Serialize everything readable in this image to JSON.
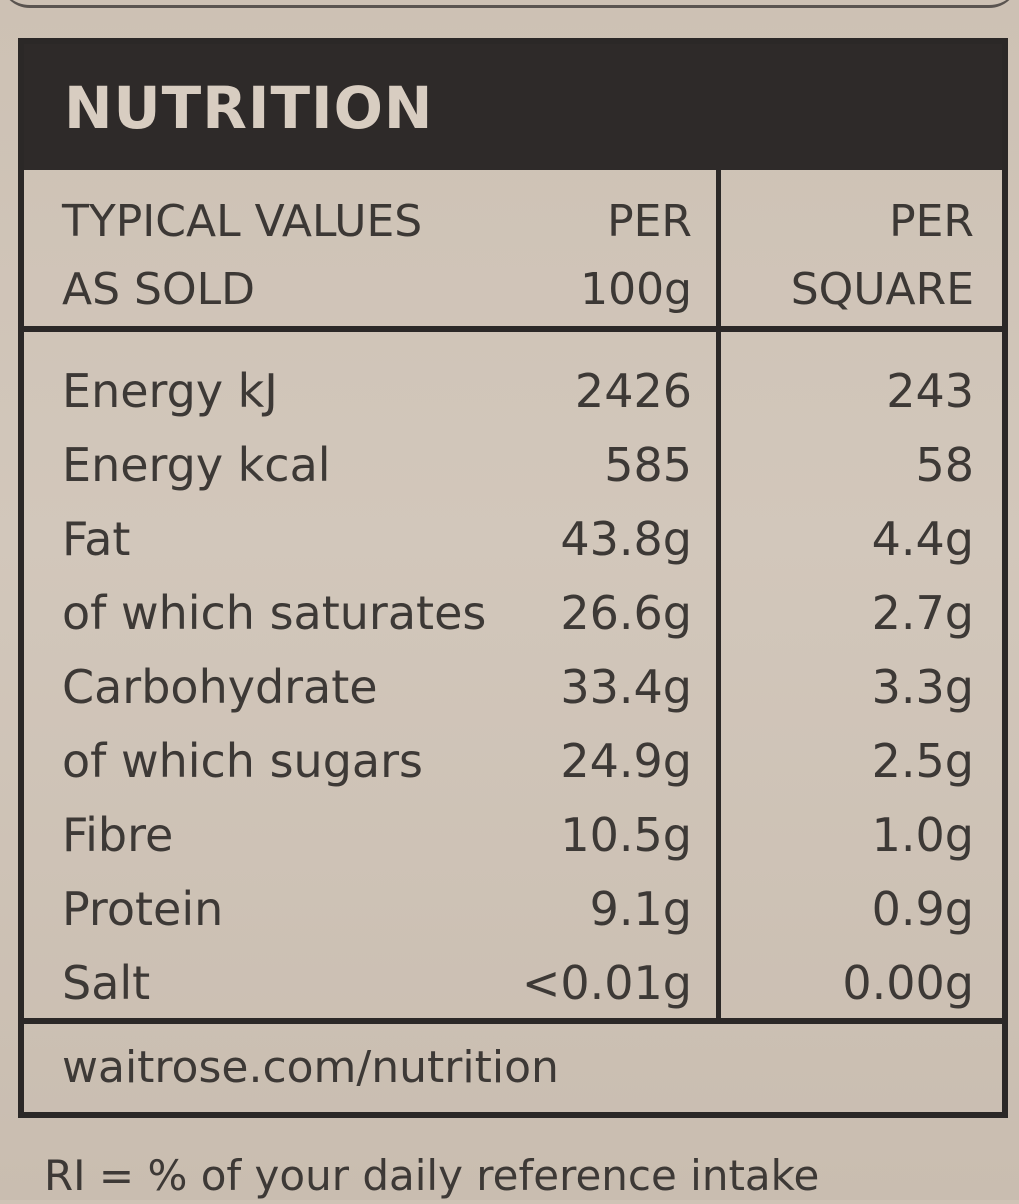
{
  "label": {
    "title": "NUTRITION",
    "column_headers": {
      "label_line1": "TYPICAL VALUES",
      "label_line2": "AS SOLD",
      "per100_line1": "PER",
      "per100_line2": "100g",
      "square_line1": "PER",
      "square_line2": "SQUARE"
    },
    "rows": [
      {
        "name": "Energy kJ",
        "per100": "2426",
        "square": "243"
      },
      {
        "name": "Energy kcal",
        "per100": "585",
        "square": "58"
      },
      {
        "name": "Fat",
        "per100": "43.8g",
        "square": "4.4g"
      },
      {
        "name": "of which saturates",
        "per100": "26.6g",
        "square": "2.7g"
      },
      {
        "name": "Carbohydrate",
        "per100": "33.4g",
        "square": "3.3g"
      },
      {
        "name": "of which sugars",
        "per100": "24.9g",
        "square": "2.5g"
      },
      {
        "name": "Fibre",
        "per100": "10.5g",
        "square": "1.0g"
      },
      {
        "name": "Protein",
        "per100": "9.1g",
        "square": "0.9g"
      },
      {
        "name": "Salt",
        "per100": "<0.01g",
        "square": "0.00g"
      }
    ],
    "footer": "waitrose.com/nutrition"
  },
  "ri_note": "RI = % of your daily reference intake",
  "colors": {
    "background": "#cfc3b6",
    "header_band": "#2e2a29",
    "header_text": "#d8cdc1",
    "ink": "#3d3936"
  }
}
